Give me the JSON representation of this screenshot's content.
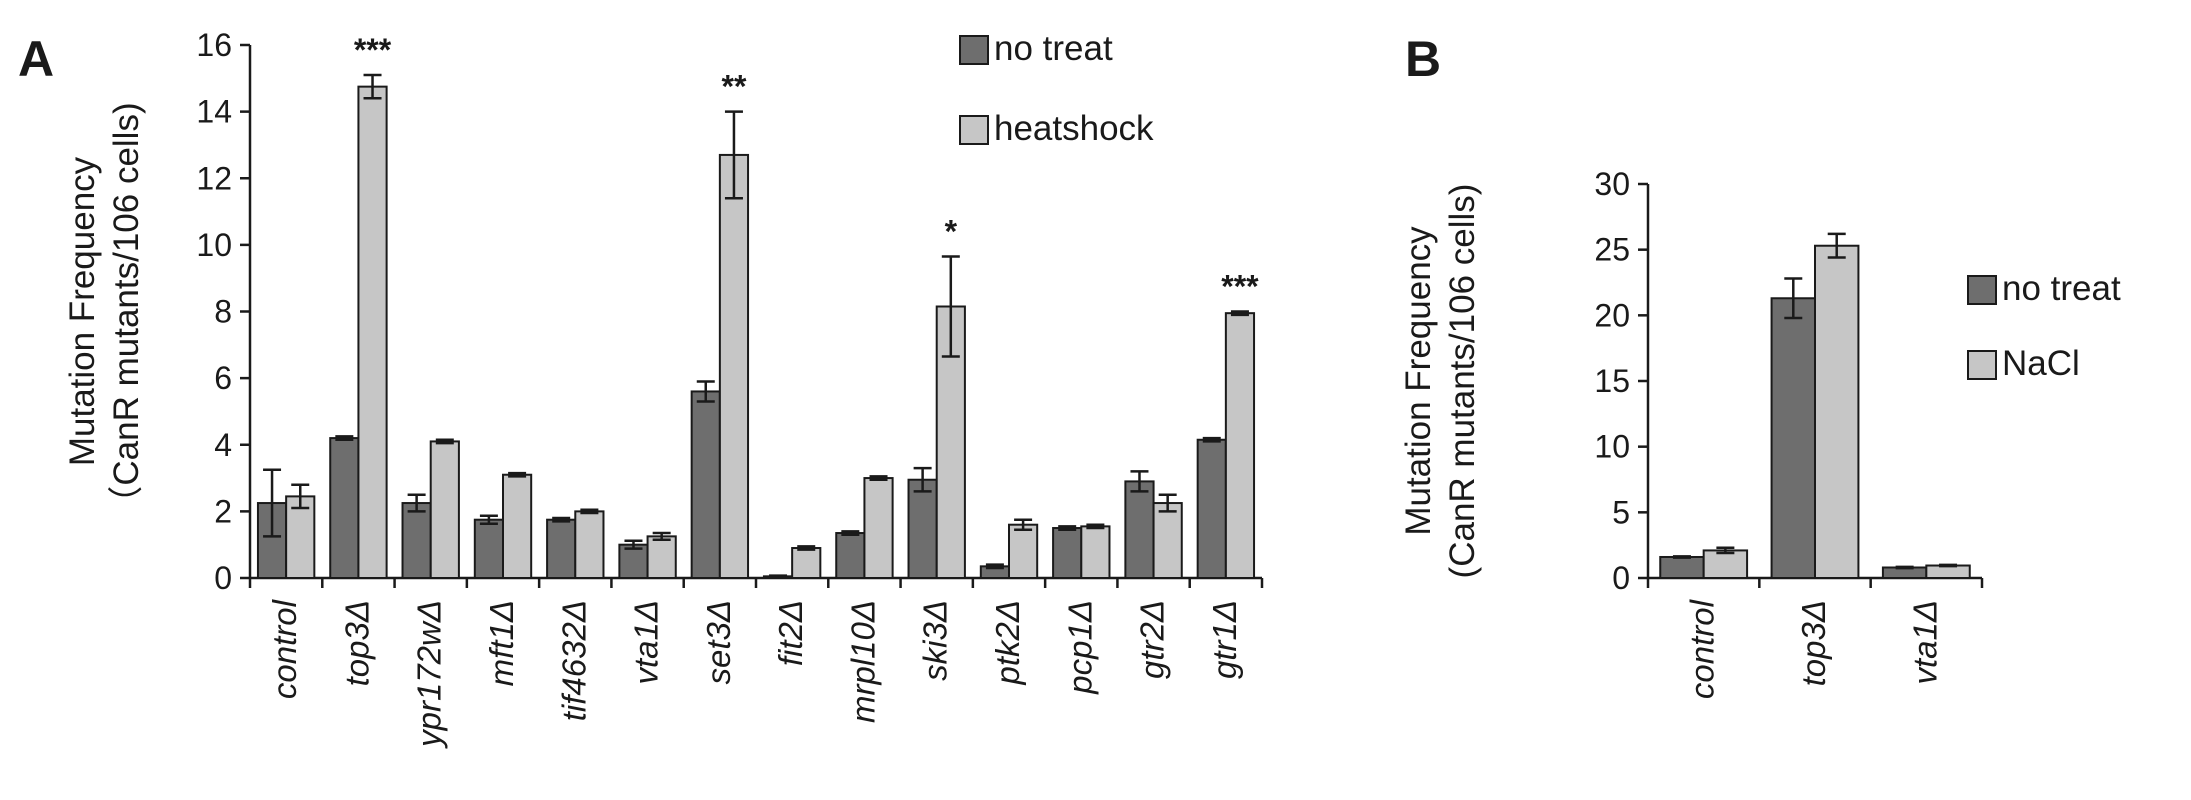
{
  "chart_data": [
    {
      "type": "bar",
      "panel": "A",
      "ylabel_lines": [
        "Mutation Frequency",
        "（CanR mutants/106 cells)"
      ],
      "ylim": [
        0,
        16
      ],
      "yticks": [
        0,
        2,
        4,
        6,
        8,
        10,
        12,
        14,
        16
      ],
      "categories": [
        "control",
        "top3Δ",
        "ypr172wΔ",
        "mft1Δ",
        "tif4632Δ",
        "vta1Δ",
        "set3Δ",
        "fit2Δ",
        "mrpl10Δ",
        "ski3Δ",
        "ptk2Δ",
        "pcp1Δ",
        "gtr2Δ",
        "gtr1Δ"
      ],
      "series": [
        {
          "name": "no treat",
          "color": "#6e6e6e",
          "values": [
            2.25,
            4.2,
            2.25,
            1.75,
            1.75,
            1.0,
            5.6,
            0.05,
            1.35,
            2.95,
            0.35,
            1.5,
            2.9,
            4.15
          ],
          "errors": [
            1.0,
            0.05,
            0.25,
            0.12,
            0.05,
            0.12,
            0.3,
            0.02,
            0.05,
            0.35,
            0.05,
            0.05,
            0.3,
            0.05
          ]
        },
        {
          "name": "heatshock",
          "color": "#c6c6c6",
          "values": [
            2.45,
            14.75,
            4.1,
            3.1,
            2.0,
            1.25,
            12.7,
            0.9,
            3.0,
            8.15,
            1.6,
            1.55,
            2.25,
            7.95
          ]
        }
      ],
      "heatshock_errors": [
        0.35,
        0.35,
        0.05,
        0.05,
        0.05,
        0.1,
        1.3,
        0.05,
        0.05,
        1.5,
        0.15,
        0.05,
        0.25,
        0.05
      ],
      "significance": [
        "",
        "***",
        "",
        "",
        "",
        "",
        "**",
        "",
        "",
        "*",
        "",
        "",
        "",
        "***"
      ],
      "legend_position": "top-right"
    },
    {
      "type": "bar",
      "panel": "B",
      "ylabel_lines": [
        "Mutation Frequency",
        "(CanR mutants/106 cells)"
      ],
      "ylim": [
        0,
        30
      ],
      "yticks": [
        0,
        5,
        10,
        15,
        20,
        25,
        30
      ],
      "categories": [
        "control",
        "top3Δ",
        "vta1Δ"
      ],
      "series": [
        {
          "name": "no treat",
          "color": "#6e6e6e",
          "values": [
            1.6,
            21.3,
            0.8
          ],
          "errors": [
            0.05,
            1.5,
            0.05
          ]
        },
        {
          "name": "NaCl",
          "color": "#c6c6c6",
          "values": [
            2.1,
            25.3,
            0.95
          ],
          "errors": [
            0.2,
            0.9,
            0.05
          ]
        }
      ],
      "legend_position": "right"
    }
  ]
}
